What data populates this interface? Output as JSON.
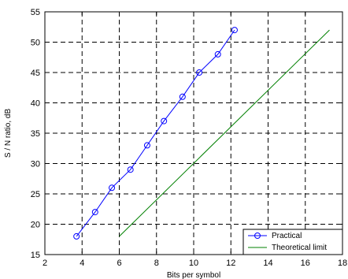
{
  "chart_data": {
    "type": "line",
    "xlabel": "Bits per symbol",
    "ylabel": "S / N ratio, dB",
    "xlim": [
      2,
      18
    ],
    "ylim": [
      15,
      55
    ],
    "xticks": [
      2,
      4,
      6,
      8,
      10,
      12,
      14,
      16,
      18
    ],
    "yticks": [
      15,
      20,
      25,
      30,
      35,
      40,
      45,
      50,
      55
    ],
    "grid": true,
    "grid_style": "dashed",
    "legend_position": "bottom-right",
    "series": [
      {
        "name": "Practical",
        "color": "#0000ff",
        "marker": "circle",
        "x": [
          3.7,
          4.7,
          5.6,
          6.6,
          7.5,
          8.4,
          9.4,
          10.3,
          11.3,
          12.2
        ],
        "y": [
          18,
          22,
          26,
          29,
          33,
          37,
          41,
          45,
          48,
          52
        ]
      },
      {
        "name": "Theoretical limit",
        "color": "#008000",
        "marker": "none",
        "x": [
          6,
          17.3
        ],
        "y": [
          18,
          52
        ]
      }
    ]
  }
}
